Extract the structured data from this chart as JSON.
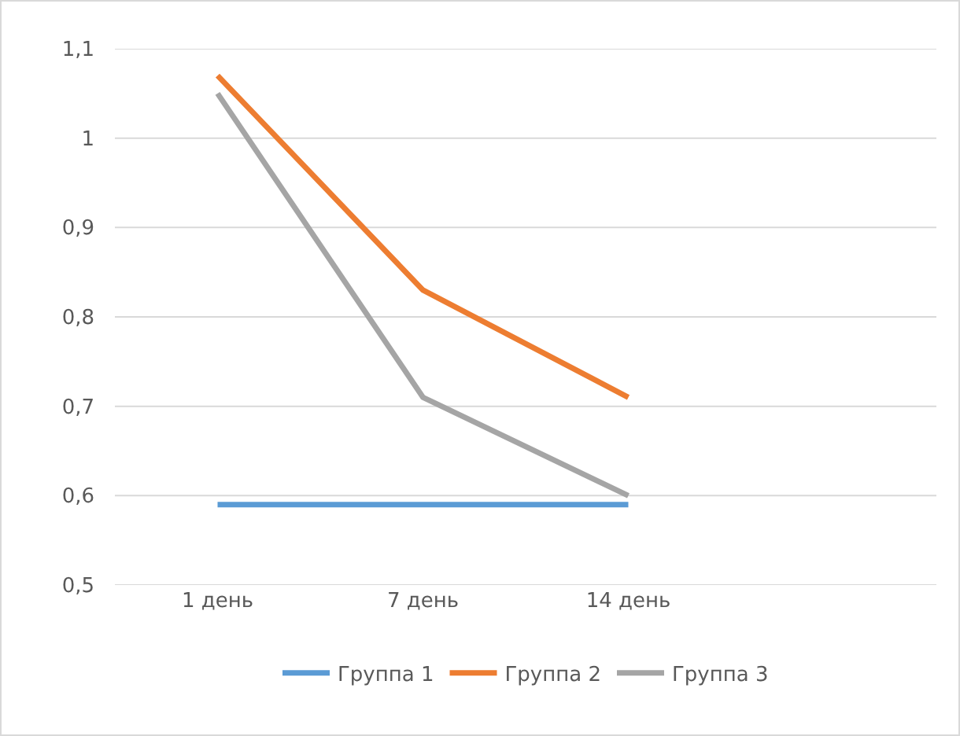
{
  "chart_data": {
    "type": "line",
    "categories": [
      "1 день",
      "7 день",
      "14 день",
      null
    ],
    "series": [
      {
        "name": "Группа 1",
        "color": "#5b9bd5",
        "values": [
          0.59,
          0.59,
          0.59,
          null
        ]
      },
      {
        "name": "Группа 2",
        "color": "#ed7d31",
        "values": [
          1.07,
          0.83,
          0.71,
          null
        ]
      },
      {
        "name": "Группа 3",
        "color": "#a5a5a5",
        "values": [
          1.05,
          0.71,
          0.6,
          null
        ]
      }
    ],
    "ylim": [
      0.5,
      1.1
    ],
    "yticks": [
      {
        "value": 0.5,
        "label": "0,5"
      },
      {
        "value": 0.6,
        "label": "0,6"
      },
      {
        "value": 0.7,
        "label": "0,7"
      },
      {
        "value": 0.8,
        "label": "0,8"
      },
      {
        "value": 0.9,
        "label": "0,9"
      },
      {
        "value": 1,
        "label": "1"
      },
      {
        "value": 1.1,
        "label": "1,1"
      }
    ],
    "grid": "y",
    "legend": "bottom",
    "marker": "none",
    "line_style": "solid"
  }
}
